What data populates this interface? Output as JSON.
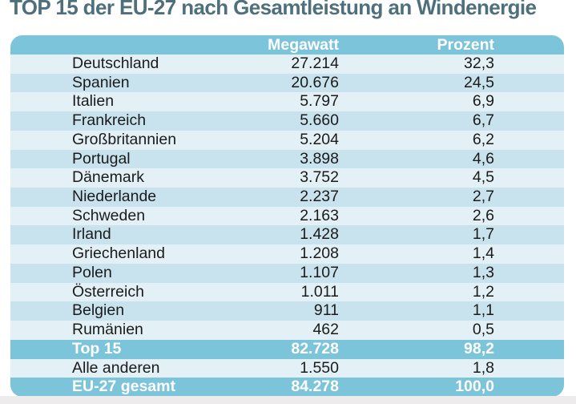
{
  "title": "TOP 15 der EU-27 nach Gesamtleistung an Windenergie",
  "colors": {
    "header_blue": "#7bc4d9",
    "row_light": "#e3f0f6",
    "row_dark": "#c9e3ee",
    "title_text": "#4e707c",
    "summary_text": "#ffffff",
    "body_text": "#1b1b1b",
    "bottom_strip": "#edebec"
  },
  "table": {
    "header": {
      "megawatt": "Megawatt",
      "prozent": "Prozent"
    },
    "rows": [
      {
        "label": "Deutschland",
        "megawatt": "27.214",
        "prozent": "32,3"
      },
      {
        "label": "Spanien",
        "megawatt": "20.676",
        "prozent": "24,5"
      },
      {
        "label": "Italien",
        "megawatt": "5.797",
        "prozent": "6,9"
      },
      {
        "label": "Frankreich",
        "megawatt": "5.660",
        "prozent": "6,7"
      },
      {
        "label": "Großbritannien",
        "megawatt": "5.204",
        "prozent": "6,2"
      },
      {
        "label": "Portugal",
        "megawatt": "3.898",
        "prozent": "4,6"
      },
      {
        "label": "Dänemark",
        "megawatt": "3.752",
        "prozent": "4,5"
      },
      {
        "label": "Niederlande",
        "megawatt": "2.237",
        "prozent": "2,7"
      },
      {
        "label": "Schweden",
        "megawatt": "2.163",
        "prozent": "2,6"
      },
      {
        "label": "Irland",
        "megawatt": "1.428",
        "prozent": "1,7"
      },
      {
        "label": "Griechenland",
        "megawatt": "1.208",
        "prozent": "1,4"
      },
      {
        "label": "Polen",
        "megawatt": "1.107",
        "prozent": "1,3"
      },
      {
        "label": "Österreich",
        "megawatt": "1.011",
        "prozent": "1,2"
      },
      {
        "label": "Belgien",
        "megawatt": "911",
        "prozent": "1,1"
      },
      {
        "label": "Rumänien",
        "megawatt": "462",
        "prozent": "0,5"
      },
      {
        "label": "Top 15",
        "megawatt": "82.728",
        "prozent": "98,2"
      },
      {
        "label": "Alle anderen",
        "megawatt": "1.550",
        "prozent": "1,8"
      },
      {
        "label": "EU-27 gesamt",
        "megawatt": "84.278",
        "prozent": "100,0"
      }
    ]
  },
  "chart_data": {
    "type": "table",
    "title": "TOP 15 der EU-27 nach Gesamtleistung an Windenergie",
    "columns": [
      "",
      "Megawatt",
      "Prozent"
    ],
    "rows": [
      [
        "Deutschland",
        27214,
        32.3
      ],
      [
        "Spanien",
        20676,
        24.5
      ],
      [
        "Italien",
        5797,
        6.9
      ],
      [
        "Frankreich",
        5660,
        6.7
      ],
      [
        "Großbritannien",
        5204,
        6.2
      ],
      [
        "Portugal",
        3898,
        4.6
      ],
      [
        "Dänemark",
        3752,
        4.5
      ],
      [
        "Niederlande",
        2237,
        2.7
      ],
      [
        "Schweden",
        2163,
        2.6
      ],
      [
        "Irland",
        1428,
        1.7
      ],
      [
        "Griechenland",
        1208,
        1.4
      ],
      [
        "Polen",
        1107,
        1.3
      ],
      [
        "Österreich",
        1011,
        1.2
      ],
      [
        "Belgien",
        911,
        1.1
      ],
      [
        "Rumänien",
        462,
        0.5
      ],
      [
        "Top 15",
        82728,
        98.2
      ],
      [
        "Alle anderen",
        1550,
        1.8
      ],
      [
        "EU-27 gesamt",
        84278,
        100.0
      ]
    ],
    "notes": "Values formatted German style: thousands dot, decimal comma. Summary rows 'Top 15' and 'EU-27 gesamt' highlighted in blue."
  }
}
